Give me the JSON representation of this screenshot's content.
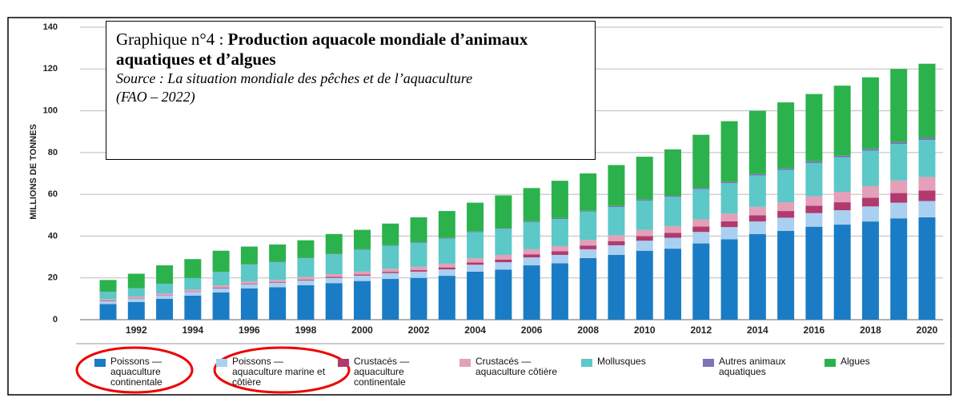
{
  "chart_data": {
    "type": "stacked_bar",
    "title_number": "Graphique n°4 :",
    "title": "Production aquacole mondiale d’animaux aquatiques et d’algues",
    "subtitle": "Source : La situation mondiale des pêches et de l’aquaculture (FAO – 2022)",
    "y_label": "MILLIONS DE TONNES",
    "categories": [
      null,
      "1992",
      null,
      "1994",
      null,
      "1996",
      null,
      "1998",
      null,
      "2000",
      null,
      "2002",
      null,
      "2004",
      null,
      "2006",
      null,
      "2008",
      null,
      "2010",
      null,
      "2012",
      null,
      "2014",
      null,
      "2016",
      null,
      "2018",
      null,
      "2020"
    ],
    "ylim": [
      0,
      140
    ],
    "yticks": [
      0,
      20,
      40,
      60,
      80,
      100,
      120,
      140
    ],
    "grid": true,
    "series": [
      {
        "name": "Poissons — aquaculture continentale",
        "color": "#1a7cc4",
        "values": [
          7.5,
          8.5,
          10,
          11.5,
          13,
          15,
          15.5,
          16.5,
          17.5,
          18.5,
          19.5,
          20,
          21,
          23,
          24,
          26,
          27,
          29.5,
          31,
          33,
          34,
          36.5,
          38.5,
          41,
          42.5,
          44.5,
          45.5,
          47,
          48.5,
          49
        ]
      },
      {
        "name": "Poissons — aquaculture marine et côtière",
        "color": "#a9d0f0",
        "values": [
          1.3,
          1.5,
          1.6,
          1.8,
          2,
          2,
          2.1,
          2.3,
          2.5,
          2.6,
          2.8,
          3,
          3.1,
          3.3,
          3.5,
          3.8,
          4,
          4.2,
          4.6,
          4.8,
          5.2,
          5.5,
          5.8,
          6,
          6.3,
          6.5,
          6.9,
          7.2,
          7.5,
          7.8
        ]
      },
      {
        "name": "Crustacés — aquaculture continentale",
        "color": "#b03a6e",
        "values": [
          0.2,
          0.2,
          0.2,
          0.2,
          0.3,
          0.3,
          0.3,
          0.4,
          0.5,
          0.5,
          0.6,
          0.7,
          0.9,
          1.1,
          1.3,
          1.5,
          1.7,
          1.8,
          2,
          2.2,
          2.4,
          2.6,
          2.8,
          3,
          3.2,
          3.5,
          3.8,
          4.2,
          4.6,
          5
        ]
      },
      {
        "name": "Crustacés — aquaculture côtière",
        "color": "#e3a0b8",
        "values": [
          0.8,
          0.8,
          0.8,
          0.9,
          1,
          1,
          1.1,
          1.2,
          1.3,
          1.4,
          1.5,
          1.6,
          1.8,
          2,
          2.2,
          2.4,
          2.5,
          2.7,
          2.8,
          3,
          3.2,
          3.4,
          3.7,
          4,
          4.2,
          4.5,
          5,
          5.5,
          6,
          6.5
        ]
      },
      {
        "name": "Mollusques",
        "color": "#5cc8c8",
        "values": [
          3.5,
          4,
          4.5,
          5.5,
          6.5,
          8,
          8.5,
          9,
          9.5,
          10.5,
          11,
          11.5,
          12,
          12.5,
          12.5,
          13,
          13,
          13.5,
          13.5,
          14,
          14,
          14.5,
          14.5,
          15,
          15.5,
          16,
          16.5,
          17,
          17.5,
          17.7
        ]
      },
      {
        "name": "Autres animaux aquatiques",
        "color": "#7b74b8",
        "values": [
          0.1,
          0.1,
          0.1,
          0.1,
          0.1,
          0.2,
          0.2,
          0.2,
          0.2,
          0.2,
          0.2,
          0.3,
          0.3,
          0.3,
          0.3,
          0.4,
          0.4,
          0.4,
          0.5,
          0.5,
          0.5,
          0.6,
          0.6,
          0.7,
          0.7,
          0.8,
          0.8,
          0.9,
          0.9,
          1
        ]
      },
      {
        "name": "Algues",
        "color": "#2bb24c",
        "values": [
          5.6,
          6.9,
          8.8,
          9,
          10.1,
          8.5,
          8.3,
          8.4,
          9.5,
          9.3,
          10.4,
          11.9,
          12.9,
          13.8,
          15.7,
          15.9,
          17.9,
          17.9,
          19.6,
          20.5,
          22.2,
          25.4,
          29.1,
          30.3,
          31.6,
          32.2,
          33.5,
          34.2,
          35,
          35.5
        ]
      }
    ]
  }
}
